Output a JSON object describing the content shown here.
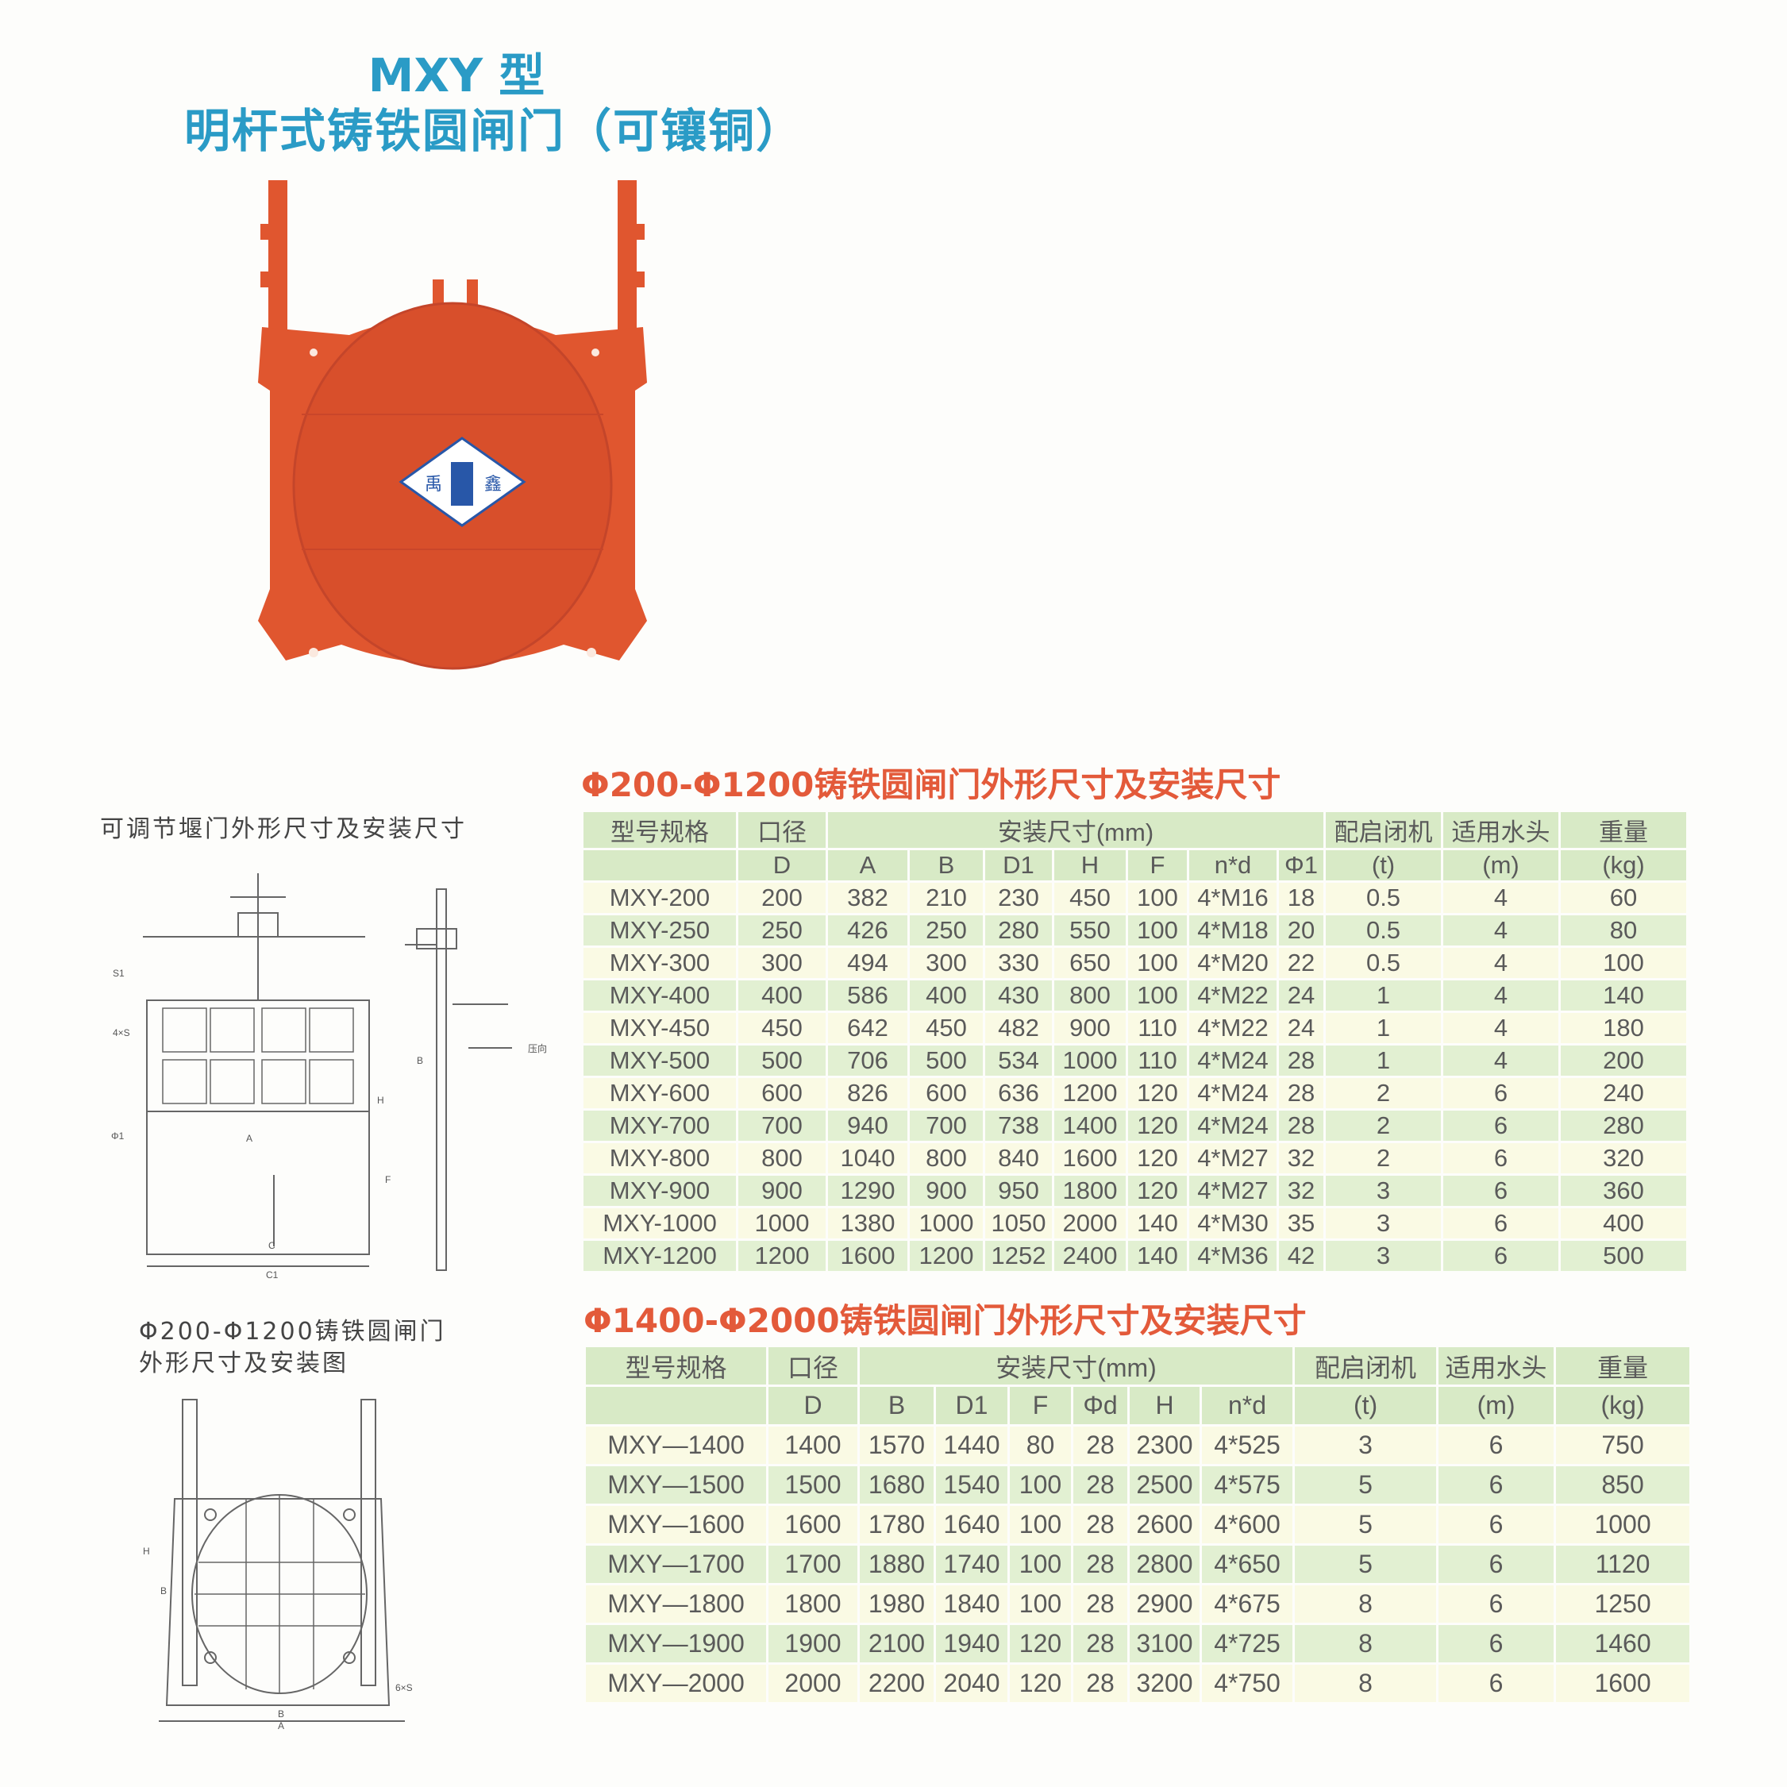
{
  "header": {
    "title_line1": "MXY 型",
    "title_line2": "明杆式铸铁圆闸门（可镶铜）"
  },
  "product_photo": {
    "logo_left": "禹",
    "logo_right": "鑫",
    "colors": {
      "body": "#e0562f",
      "shadow": "#c9462a"
    }
  },
  "drawing1": {
    "caption": "可调节堰门外形尺寸及安装尺寸",
    "labels": {
      "a": "A",
      "c": "C",
      "c1": "C1",
      "h": "H",
      "f": "F",
      "b": "B",
      "s1": "S1",
      "s4": "4×S",
      "phi1": "Φ1",
      "pressure": "压向"
    }
  },
  "drawing2": {
    "caption_line1": "Φ200-Φ1200铸铁圆闸门",
    "caption_line2": "外形尺寸及安装图",
    "labels": {
      "h": "H",
      "b": "B",
      "a": "A",
      "bp": "B",
      "s": "6×S"
    }
  },
  "table1": {
    "title": "Φ200-Φ1200铸铁圆闸门外形尺寸及安装尺寸",
    "header_row1": [
      "型号规格",
      "口径",
      "安装尺寸(mm)",
      "配启闭机",
      "适用水头",
      "重量"
    ],
    "header_row2": [
      "",
      "D",
      "A",
      "B",
      "D1",
      "H",
      "F",
      "n*d",
      "Φ1",
      "(t)",
      "(m)",
      "(kg)"
    ],
    "rows": [
      [
        "MXY-200",
        "200",
        "382",
        "210",
        "230",
        "450",
        "100",
        "4*M16",
        "18",
        "0.5",
        "4",
        "60"
      ],
      [
        "MXY-250",
        "250",
        "426",
        "250",
        "280",
        "550",
        "100",
        "4*M18",
        "20",
        "0.5",
        "4",
        "80"
      ],
      [
        "MXY-300",
        "300",
        "494",
        "300",
        "330",
        "650",
        "100",
        "4*M20",
        "22",
        "0.5",
        "4",
        "100"
      ],
      [
        "MXY-400",
        "400",
        "586",
        "400",
        "430",
        "800",
        "100",
        "4*M22",
        "24",
        "1",
        "4",
        "140"
      ],
      [
        "MXY-450",
        "450",
        "642",
        "450",
        "482",
        "900",
        "110",
        "4*M22",
        "24",
        "1",
        "4",
        "180"
      ],
      [
        "MXY-500",
        "500",
        "706",
        "500",
        "534",
        "1000",
        "110",
        "4*M24",
        "28",
        "1",
        "4",
        "200"
      ],
      [
        "MXY-600",
        "600",
        "826",
        "600",
        "636",
        "1200",
        "120",
        "4*M24",
        "28",
        "2",
        "6",
        "240"
      ],
      [
        "MXY-700",
        "700",
        "940",
        "700",
        "738",
        "1400",
        "120",
        "4*M24",
        "28",
        "2",
        "6",
        "280"
      ],
      [
        "MXY-800",
        "800",
        "1040",
        "800",
        "840",
        "1600",
        "120",
        "4*M27",
        "32",
        "2",
        "6",
        "320"
      ],
      [
        "MXY-900",
        "900",
        "1290",
        "900",
        "950",
        "1800",
        "120",
        "4*M27",
        "32",
        "3",
        "6",
        "360"
      ],
      [
        "MXY-1000",
        "1000",
        "1380",
        "1000",
        "1050",
        "2000",
        "140",
        "4*M30",
        "35",
        "3",
        "6",
        "400"
      ],
      [
        "MXY-1200",
        "1200",
        "1600",
        "1200",
        "1252",
        "2400",
        "140",
        "4*M36",
        "42",
        "3",
        "6",
        "500"
      ]
    ]
  },
  "table2": {
    "title": "Φ1400-Φ2000铸铁圆闸门外形尺寸及安装尺寸",
    "header_row1": [
      "型号规格",
      "口径",
      "安装尺寸(mm)",
      "配启闭机",
      "适用水头",
      "重量"
    ],
    "header_row2": [
      "",
      "D",
      "B",
      "D1",
      "F",
      "Φd",
      "H",
      "n*d",
      "(t)",
      "(m)",
      "(kg)"
    ],
    "rows": [
      [
        "MXY—1400",
        "1400",
        "1570",
        "1440",
        "80",
        "28",
        "2300",
        "4*525",
        "3",
        "6",
        "750"
      ],
      [
        "MXY—1500",
        "1500",
        "1680",
        "1540",
        "100",
        "28",
        "2500",
        "4*575",
        "5",
        "6",
        "850"
      ],
      [
        "MXY—1600",
        "1600",
        "1780",
        "1640",
        "100",
        "28",
        "2600",
        "4*600",
        "5",
        "6",
        "1000"
      ],
      [
        "MXY—1700",
        "1700",
        "1880",
        "1740",
        "100",
        "28",
        "2800",
        "4*650",
        "5",
        "6",
        "1120"
      ],
      [
        "MXY—1800",
        "1800",
        "1980",
        "1840",
        "100",
        "28",
        "2900",
        "4*675",
        "8",
        "6",
        "1250"
      ],
      [
        "MXY—1900",
        "1900",
        "2100",
        "1940",
        "120",
        "28",
        "3100",
        "4*725",
        "8",
        "6",
        "1460"
      ],
      [
        "MXY—2000",
        "2000",
        "2200",
        "2040",
        "120",
        "28",
        "3200",
        "4*750",
        "8",
        "6",
        "1600"
      ]
    ]
  },
  "colors": {
    "title_blue": "#2a9bc6",
    "section_red": "#e35a3a",
    "row_green": "#e2f0d2",
    "row_cream": "#fafae4",
    "header_green": "#d8eac6"
  }
}
